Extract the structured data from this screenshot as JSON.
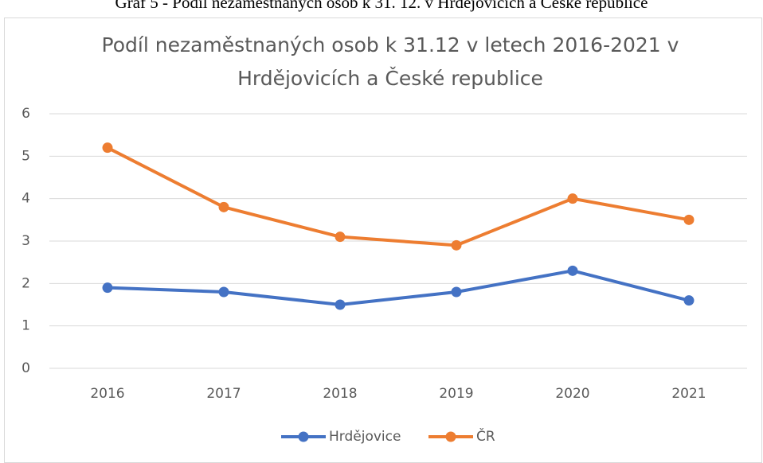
{
  "caption": "Graf 5 - Podíl nezaměstnaných osob k 31. 12. v Hrdějovicích a České republice",
  "chart_data": {
    "type": "line",
    "title": "Podíl nezaměstnaných osob k 31.12 v letech 2016-2021 v Hrdějovicích a České republice",
    "categories": [
      "2016",
      "2017",
      "2018",
      "2019",
      "2020",
      "2021"
    ],
    "series": [
      {
        "name": "Hrdějovice",
        "color": "#4472c4",
        "values": [
          1.9,
          1.8,
          1.5,
          1.8,
          2.3,
          1.6
        ]
      },
      {
        "name": "ČR",
        "color": "#ed7d31",
        "values": [
          5.2,
          3.8,
          3.1,
          2.9,
          4.0,
          3.5
        ]
      }
    ],
    "ylim": [
      0,
      6
    ],
    "yticks": [
      0,
      1,
      2,
      3,
      4,
      5,
      6
    ],
    "grid": true,
    "legend": "bottom"
  }
}
